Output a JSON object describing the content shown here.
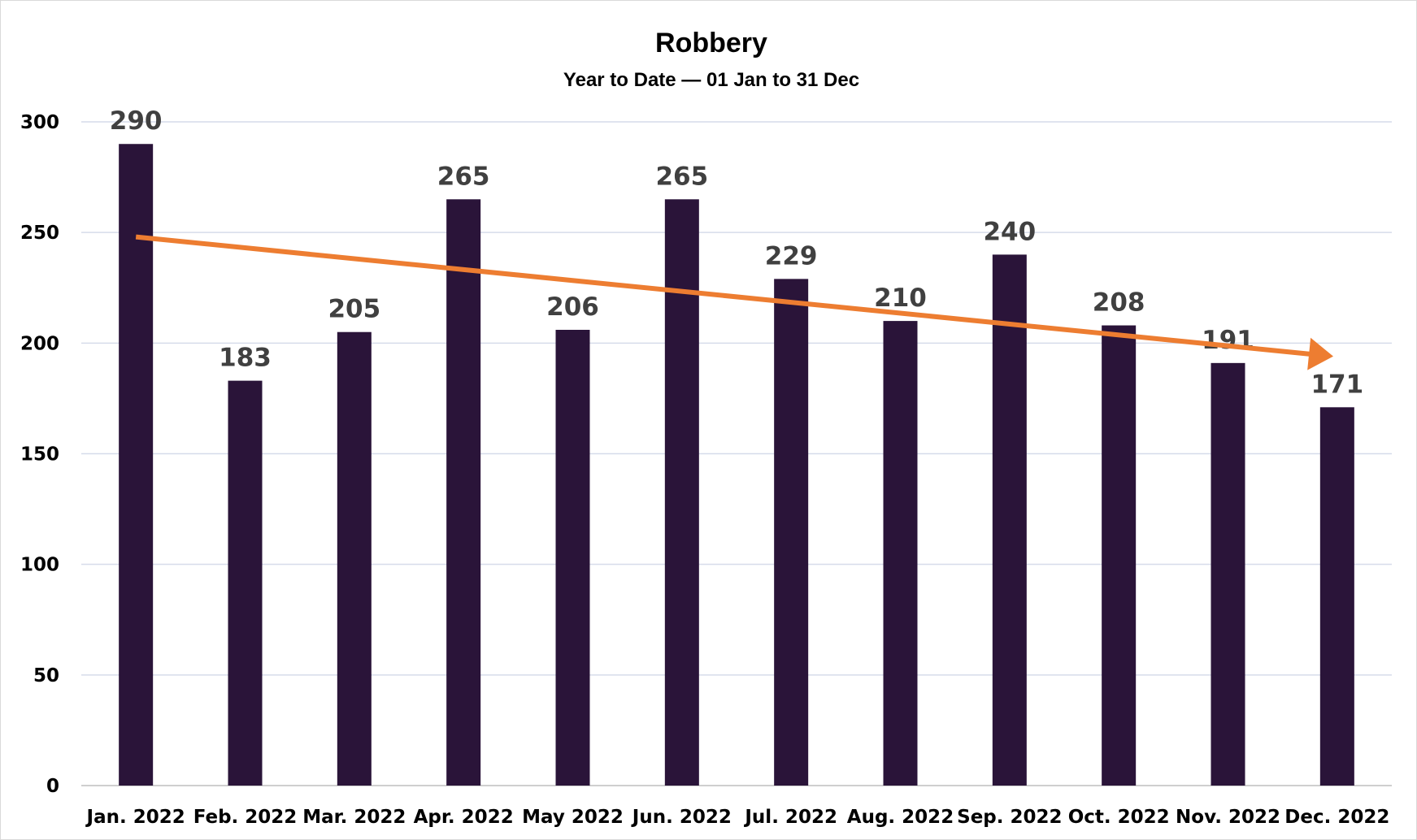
{
  "chart_data": {
    "type": "bar",
    "title": "Robbery",
    "subtitle": "Year to Date — 01 Jan to 31 Dec",
    "xlabel": "",
    "ylabel": "",
    "categories": [
      "Jan. 2022",
      "Feb. 2022",
      "Mar. 2022",
      "Apr. 2022",
      "May 2022",
      "Jun. 2022",
      "Jul. 2022",
      "Aug. 2022",
      "Sep. 2022",
      "Oct. 2022",
      "Nov. 2022",
      "Dec. 2022"
    ],
    "values": [
      290,
      183,
      205,
      265,
      206,
      265,
      229,
      210,
      240,
      208,
      191,
      171
    ],
    "ylim": [
      0,
      300
    ],
    "yticks": [
      0,
      50,
      100,
      150,
      200,
      250,
      300
    ],
    "grid": true,
    "legend": "none",
    "colors": {
      "bar": "#2a1439",
      "trend_arrow": "#ed7d31",
      "gridline": "#d6dcea",
      "data_label": "#404040"
    },
    "trend": {
      "type": "arrow",
      "start_value": 248,
      "end_value": 194
    }
  }
}
